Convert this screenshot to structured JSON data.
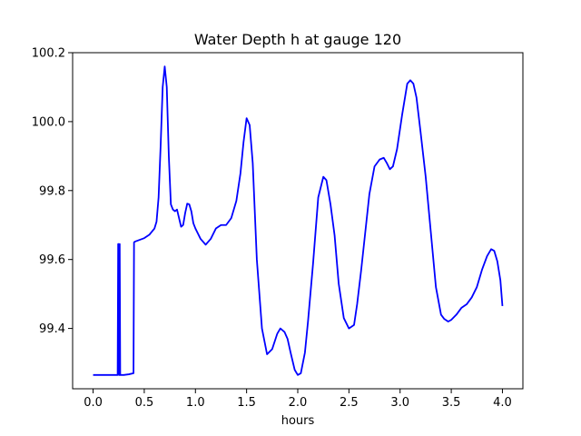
{
  "chart_data": {
    "type": "line",
    "title": "Water Depth h at gauge 120",
    "xlabel": "hours",
    "ylabel": "",
    "xlim": [
      -0.2,
      4.2
    ],
    "ylim": [
      99.225,
      100.2
    ],
    "xticks": [
      0.0,
      0.5,
      1.0,
      1.5,
      2.0,
      2.5,
      3.0,
      3.5,
      4.0
    ],
    "xtick_labels": [
      "0.0",
      "0.5",
      "1.0",
      "1.5",
      "2.0",
      "2.5",
      "3.0",
      "3.5",
      "4.0"
    ],
    "yticks": [
      99.4,
      99.6,
      99.8,
      100.0,
      100.2
    ],
    "ytick_labels": [
      "99.4",
      "99.6",
      "99.8",
      "100.0",
      "100.2"
    ],
    "grid": false,
    "series": [
      {
        "color": "#0000ff",
        "x": [
          0.0,
          0.1,
          0.24,
          0.245,
          0.25,
          0.255,
          0.26,
          0.265,
          0.27,
          0.3,
          0.35,
          0.395,
          0.4,
          0.41,
          0.5,
          0.55,
          0.6,
          0.62,
          0.64,
          0.66,
          0.68,
          0.7,
          0.72,
          0.74,
          0.76,
          0.78,
          0.8,
          0.82,
          0.84,
          0.86,
          0.88,
          0.9,
          0.92,
          0.94,
          0.96,
          0.98,
          1.0,
          1.05,
          1.1,
          1.15,
          1.2,
          1.25,
          1.3,
          1.35,
          1.4,
          1.44,
          1.47,
          1.5,
          1.53,
          1.56,
          1.6,
          1.65,
          1.7,
          1.75,
          1.8,
          1.83,
          1.87,
          1.9,
          1.93,
          1.97,
          2.0,
          2.03,
          2.07,
          2.1,
          2.15,
          2.2,
          2.25,
          2.28,
          2.32,
          2.36,
          2.4,
          2.45,
          2.5,
          2.55,
          2.58,
          2.62,
          2.66,
          2.7,
          2.75,
          2.8,
          2.84,
          2.87,
          2.9,
          2.93,
          2.97,
          3.02,
          3.07,
          3.1,
          3.13,
          3.16,
          3.2,
          3.25,
          3.3,
          3.35,
          3.4,
          3.43,
          3.47,
          3.5,
          3.55,
          3.6,
          3.65,
          3.7,
          3.75,
          3.8,
          3.85,
          3.89,
          3.92,
          3.95,
          3.98,
          4.0
        ],
        "y": [
          99.265,
          99.265,
          99.265,
          99.645,
          99.645,
          99.265,
          99.645,
          99.265,
          99.265,
          99.265,
          99.267,
          99.27,
          99.65,
          99.652,
          99.662,
          99.672,
          99.69,
          99.71,
          99.78,
          99.93,
          100.1,
          100.16,
          100.1,
          99.9,
          99.76,
          99.745,
          99.74,
          99.745,
          99.72,
          99.695,
          99.7,
          99.735,
          99.762,
          99.76,
          99.74,
          99.705,
          99.69,
          99.66,
          99.643,
          99.66,
          99.69,
          99.7,
          99.7,
          99.72,
          99.77,
          99.85,
          99.94,
          100.01,
          99.99,
          99.88,
          99.6,
          99.4,
          99.325,
          99.34,
          99.385,
          99.4,
          99.39,
          99.37,
          99.33,
          99.28,
          99.265,
          99.27,
          99.33,
          99.42,
          99.59,
          99.78,
          99.84,
          99.83,
          99.76,
          99.67,
          99.53,
          99.43,
          99.4,
          99.41,
          99.47,
          99.57,
          99.68,
          99.79,
          99.87,
          99.89,
          99.895,
          99.88,
          99.862,
          99.87,
          99.92,
          100.02,
          100.11,
          100.12,
          100.11,
          100.07,
          99.97,
          99.84,
          99.68,
          99.52,
          99.44,
          99.428,
          99.42,
          99.425,
          99.44,
          99.46,
          99.47,
          99.49,
          99.52,
          99.57,
          99.61,
          99.63,
          99.625,
          99.595,
          99.54,
          99.465
        ]
      }
    ]
  }
}
